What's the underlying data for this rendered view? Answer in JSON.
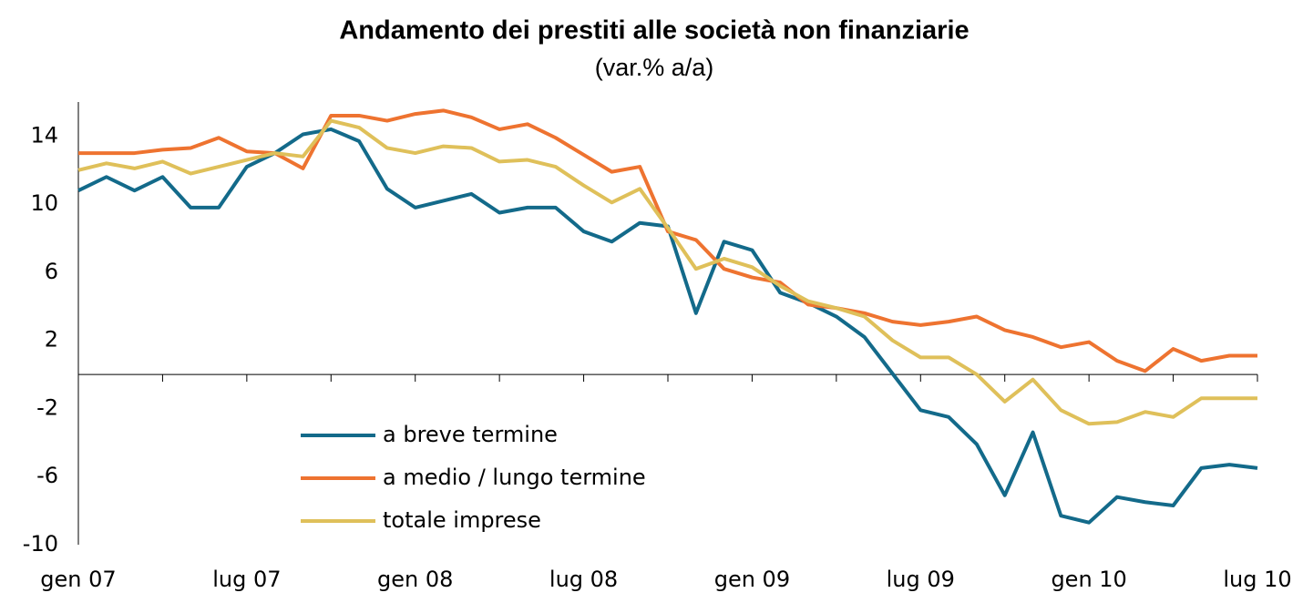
{
  "chart_data": {
    "type": "line",
    "title": "Andamento dei prestiti alle società non finanziarie",
    "subtitle": "(var.% a/a)",
    "categories": [
      "gen 07",
      null,
      null,
      null,
      null,
      null,
      "lug 07",
      null,
      null,
      null,
      null,
      null,
      "gen 08",
      null,
      null,
      null,
      null,
      null,
      "lug 08",
      null,
      null,
      null,
      null,
      null,
      "gen 09",
      null,
      null,
      null,
      null,
      null,
      "lug 09",
      null,
      null,
      null,
      null,
      null,
      "gen 10",
      null,
      null,
      null,
      null,
      null,
      "lug 10"
    ],
    "series": [
      {
        "name": "a breve termine",
        "color": "#136a8a",
        "values": [
          10.8,
          11.6,
          10.8,
          11.6,
          9.8,
          9.8,
          12.2,
          13.0,
          14.1,
          14.4,
          13.7,
          10.9,
          9.8,
          10.2,
          10.6,
          9.5,
          9.8,
          9.8,
          8.4,
          7.8,
          8.9,
          8.7,
          3.6,
          7.8,
          7.3,
          4.8,
          4.2,
          3.4,
          2.2,
          0.05,
          -2.1,
          -2.5,
          -4.1,
          -7.1,
          -3.4,
          -8.3,
          -8.7,
          -7.2,
          -7.5,
          -7.7,
          -5.5,
          -5.3,
          -5.5
        ]
      },
      {
        "name": "a medio / lungo termine",
        "color": "#ee7330",
        "values": [
          13.0,
          13.0,
          13.0,
          13.2,
          13.3,
          13.9,
          13.1,
          13.0,
          12.1,
          15.2,
          15.2,
          14.9,
          15.3,
          15.5,
          15.1,
          14.4,
          14.7,
          13.9,
          12.9,
          11.9,
          12.2,
          8.4,
          7.9,
          6.2,
          5.7,
          5.4,
          4.1,
          3.9,
          3.6,
          3.1,
          2.9,
          3.1,
          3.4,
          2.6,
          2.2,
          1.6,
          1.9,
          0.8,
          0.2,
          1.5,
          0.8,
          1.1,
          1.1
        ]
      },
      {
        "name": "totale imprese",
        "color": "#dfc05a",
        "values": [
          12.0,
          12.4,
          12.1,
          12.5,
          11.8,
          12.2,
          12.6,
          13.0,
          12.8,
          14.9,
          14.5,
          13.3,
          13.0,
          13.4,
          13.3,
          12.5,
          12.6,
          12.2,
          11.1,
          10.1,
          10.9,
          8.6,
          6.2,
          6.8,
          6.3,
          5.2,
          4.3,
          3.9,
          3.4,
          2.0,
          1.0,
          1.0,
          0.0,
          -1.6,
          -0.3,
          -2.1,
          -2.9,
          -2.8,
          -2.2,
          -2.5,
          -1.4,
          -1.4,
          -1.4
        ]
      }
    ],
    "ylim": [
      -10,
      16
    ],
    "yticks": [
      -10,
      -6,
      -2,
      2,
      6,
      10,
      14
    ]
  }
}
